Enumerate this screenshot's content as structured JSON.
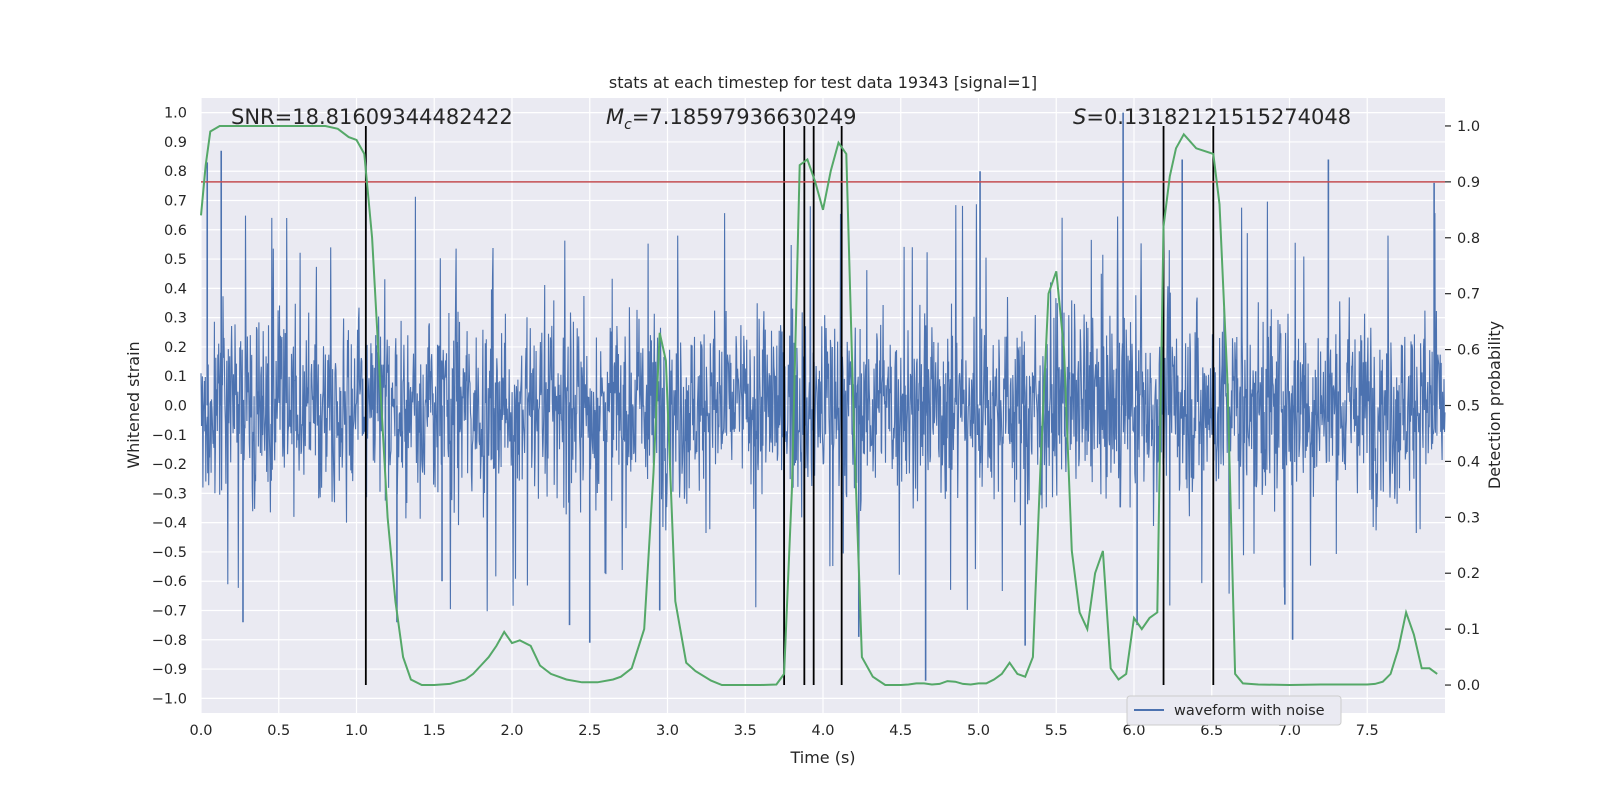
{
  "chart_data": {
    "type": "line",
    "title": "stats at each timestep for test data 19343 [signal=1]",
    "xlabel": "Time (s)",
    "ylabel_left": "Whitened strain",
    "ylabel_right": "Detection probability",
    "xlim": [
      0.0,
      8.0
    ],
    "ylim_left": [
      -1.05,
      1.05
    ],
    "ylim_right": [
      -0.05,
      1.05
    ],
    "x_ticks": [
      "0.0",
      "0.5",
      "1.0",
      "1.5",
      "2.0",
      "2.5",
      "3.0",
      "3.5",
      "4.0",
      "4.5",
      "5.0",
      "5.5",
      "6.0",
      "6.5",
      "7.0",
      "7.5"
    ],
    "y_ticks_left": [
      "−1.0",
      "−0.9",
      "−0.8",
      "−0.7",
      "−0.6",
      "−0.5",
      "−0.4",
      "−0.3",
      "−0.2",
      "−0.1",
      "0.0",
      "0.1",
      "0.2",
      "0.3",
      "0.4",
      "0.5",
      "0.6",
      "0.7",
      "0.8",
      "0.9",
      "1.0"
    ],
    "y_ticks_right": [
      "0.0",
      "0.1",
      "0.2",
      "0.3",
      "0.4",
      "0.5",
      "0.6",
      "0.7",
      "0.8",
      "0.9",
      "1.0"
    ],
    "grid": true,
    "legend": {
      "placement": "lower-right",
      "entries": [
        "waveform with noise"
      ]
    },
    "annotations": {
      "snr": "SNR=18.81609344482422",
      "mc_symbol": "M",
      "mc_sub": "c",
      "mc_value": "=7.18597936630249",
      "s_symbol": "S",
      "s_value": "=0.1318212151527404​8"
    },
    "threshold": {
      "axis": "right",
      "value": 0.9,
      "color": "#c44e52"
    },
    "vertical_lines_x": [
      1.06,
      3.75,
      3.88,
      3.94,
      4.12,
      6.19,
      6.51
    ],
    "series": [
      {
        "name": "waveform with noise",
        "axis": "left",
        "color": "#4c72b0",
        "style": "dense noise, envelope approx ±0.35 with spikes up to ±1.0",
        "peaks": [
          {
            "x": 0.04,
            "y": 0.83
          },
          {
            "x": 0.13,
            "y": 0.87
          },
          {
            "x": 0.27,
            "y": -0.74
          },
          {
            "x": 1.06,
            "y": 0.86
          },
          {
            "x": 1.26,
            "y": -0.74
          },
          {
            "x": 1.55,
            "y": -0.6
          },
          {
            "x": 2.37,
            "y": -0.75
          },
          {
            "x": 2.5,
            "y": -0.81
          },
          {
            "x": 2.95,
            "y": -0.7
          },
          {
            "x": 3.75,
            "y": -0.9
          },
          {
            "x": 4.12,
            "y": 0.81
          },
          {
            "x": 4.23,
            "y": -0.79
          },
          {
            "x": 4.66,
            "y": -0.94
          },
          {
            "x": 5.01,
            "y": 0.8
          },
          {
            "x": 5.3,
            "y": -0.82
          },
          {
            "x": 5.93,
            "y": 1.0
          },
          {
            "x": 6.02,
            "y": -0.75
          },
          {
            "x": 6.31,
            "y": 0.84
          },
          {
            "x": 6.97,
            "y": -0.68
          },
          {
            "x": 7.02,
            "y": -0.8
          },
          {
            "x": 7.25,
            "y": 0.84
          },
          {
            "x": 7.93,
            "y": 0.76
          }
        ]
      },
      {
        "name": "Detection probability",
        "axis": "right",
        "color": "#55a868",
        "x": [
          0.0,
          0.03,
          0.06,
          0.12,
          0.2,
          0.3,
          0.4,
          0.5,
          0.6,
          0.7,
          0.8,
          0.88,
          0.95,
          1.0,
          1.05,
          1.1,
          1.15,
          1.2,
          1.25,
          1.3,
          1.35,
          1.42,
          1.5,
          1.6,
          1.7,
          1.75,
          1.8,
          1.85,
          1.9,
          1.95,
          2.0,
          2.05,
          2.12,
          2.18,
          2.25,
          2.35,
          2.45,
          2.55,
          2.65,
          2.7,
          2.77,
          2.85,
          2.91,
          2.95,
          2.99,
          3.05,
          3.12,
          3.18,
          3.28,
          3.35,
          3.5,
          3.6,
          3.7,
          3.75,
          3.8,
          3.85,
          3.9,
          3.95,
          4.0,
          4.05,
          4.1,
          4.15,
          4.2,
          4.25,
          4.32,
          4.4,
          4.5,
          4.55,
          4.6,
          4.65,
          4.7,
          4.75,
          4.8,
          4.85,
          4.9,
          4.95,
          5.0,
          5.05,
          5.1,
          5.15,
          5.2,
          5.25,
          5.3,
          5.35,
          5.4,
          5.45,
          5.5,
          5.55,
          5.6,
          5.65,
          5.7,
          5.75,
          5.8,
          5.85,
          5.9,
          5.95,
          6.0,
          6.05,
          6.1,
          6.15,
          6.19,
          6.23,
          6.27,
          6.32,
          6.4,
          6.51,
          6.55,
          6.6,
          6.65,
          6.7,
          6.8,
          7.0,
          7.2,
          7.4,
          7.5,
          7.55,
          7.6,
          7.65,
          7.7,
          7.75,
          7.8,
          7.85,
          7.9,
          7.95
        ],
        "y": [
          0.84,
          0.93,
          0.99,
          1.0,
          1.0,
          1.0,
          1.0,
          1.0,
          1.0,
          1.0,
          1.0,
          0.995,
          0.98,
          0.975,
          0.95,
          0.8,
          0.55,
          0.3,
          0.15,
          0.05,
          0.01,
          0.0,
          0.0,
          0.002,
          0.01,
          0.02,
          0.035,
          0.05,
          0.07,
          0.095,
          0.075,
          0.08,
          0.07,
          0.035,
          0.02,
          0.01,
          0.005,
          0.005,
          0.01,
          0.015,
          0.03,
          0.1,
          0.38,
          0.63,
          0.58,
          0.15,
          0.04,
          0.025,
          0.008,
          0.0,
          0.0,
          0.0,
          0.001,
          0.02,
          0.35,
          0.93,
          0.94,
          0.9,
          0.85,
          0.92,
          0.97,
          0.95,
          0.45,
          0.05,
          0.015,
          0.0,
          0.0,
          0.001,
          0.003,
          0.003,
          0.001,
          0.002,
          0.007,
          0.006,
          0.002,
          0.001,
          0.003,
          0.003,
          0.01,
          0.02,
          0.04,
          0.02,
          0.015,
          0.05,
          0.4,
          0.7,
          0.74,
          0.6,
          0.24,
          0.13,
          0.1,
          0.2,
          0.24,
          0.03,
          0.01,
          0.02,
          0.12,
          0.1,
          0.12,
          0.13,
          0.82,
          0.91,
          0.96,
          0.985,
          0.96,
          0.95,
          0.86,
          0.55,
          0.02,
          0.003,
          0.001,
          0.0,
          0.001,
          0.001,
          0.001,
          0.002,
          0.006,
          0.02,
          0.065,
          0.13,
          0.09,
          0.03,
          0.03,
          0.02
        ]
      }
    ]
  }
}
